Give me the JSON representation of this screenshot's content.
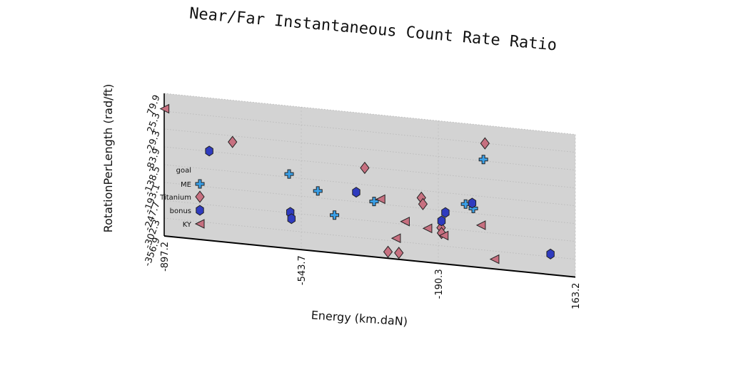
{
  "chart_data": {
    "type": "scatter",
    "title": "Near/Far Instantaneous Count Rate Ratio",
    "xlabel": "Energy (km.daN)",
    "ylabel": "RotationPerLength (rad/ft)",
    "x_ticks": [
      "-897.2",
      "-543.7",
      "-190.3",
      "163.2"
    ],
    "y_ticks": [
      "-356.9",
      "-302.3",
      "-247.7",
      "-193.1",
      "-138.5",
      "-83.9",
      "-29.3",
      "25.3",
      "79.9"
    ],
    "xlim": [
      -897.2,
      163.2
    ],
    "ylim": [
      -356.9,
      79.9
    ],
    "grid": true,
    "legend_position": "left",
    "legend_entries": [
      "goal",
      "ME",
      "Titanium",
      "bonus",
      "KY"
    ],
    "series": [
      {
        "name": "goal",
        "marker": "none",
        "color": "#ffffff",
        "points": []
      },
      {
        "name": "ME",
        "marker": "plus",
        "color": "#3aa0e8",
        "points": [
          [
            -575,
            -129
          ],
          [
            -501,
            -172
          ],
          [
            -458,
            -241
          ],
          [
            -356,
            -187
          ],
          [
            -120,
            -167
          ],
          [
            -100,
            -178
          ],
          [
            -74,
            -25
          ]
        ]
      },
      {
        "name": "Titanium",
        "marker": "diamond",
        "color": "#c77080",
        "points": [
          [
            -721,
            -48
          ],
          [
            -380,
            -87
          ],
          [
            -320,
            -337
          ],
          [
            -292,
            -337
          ],
          [
            -234,
            -161
          ],
          [
            -230,
            -180
          ],
          [
            -183,
            -247
          ],
          [
            -182,
            -263
          ],
          [
            -70,
            25
          ]
        ]
      },
      {
        "name": "bonus",
        "marker": "hexagon",
        "color": "#2f3bbf",
        "points": [
          [
            -781,
            -83
          ],
          [
            -572,
            -246
          ],
          [
            -569,
            -265
          ],
          [
            -402,
            -164
          ],
          [
            -182,
            -226
          ],
          [
            -172,
            -199
          ],
          [
            -103,
            -162
          ],
          [
            99,
            -294
          ]
        ]
      },
      {
        "name": "KY",
        "marker": "triangle-left",
        "color": "#c77080",
        "points": [
          [
            -896,
            33
          ],
          [
            -339,
            -178
          ],
          [
            -299,
            -293
          ],
          [
            -276,
            -239
          ],
          [
            -218,
            -253
          ],
          [
            -176,
            -270
          ],
          [
            -80,
            -227
          ],
          [
            -45,
            -327
          ]
        ]
      }
    ]
  },
  "colors": {
    "plot_background": "#d3d3d3",
    "grid": "#bfbfbf",
    "axis": "#000000"
  }
}
